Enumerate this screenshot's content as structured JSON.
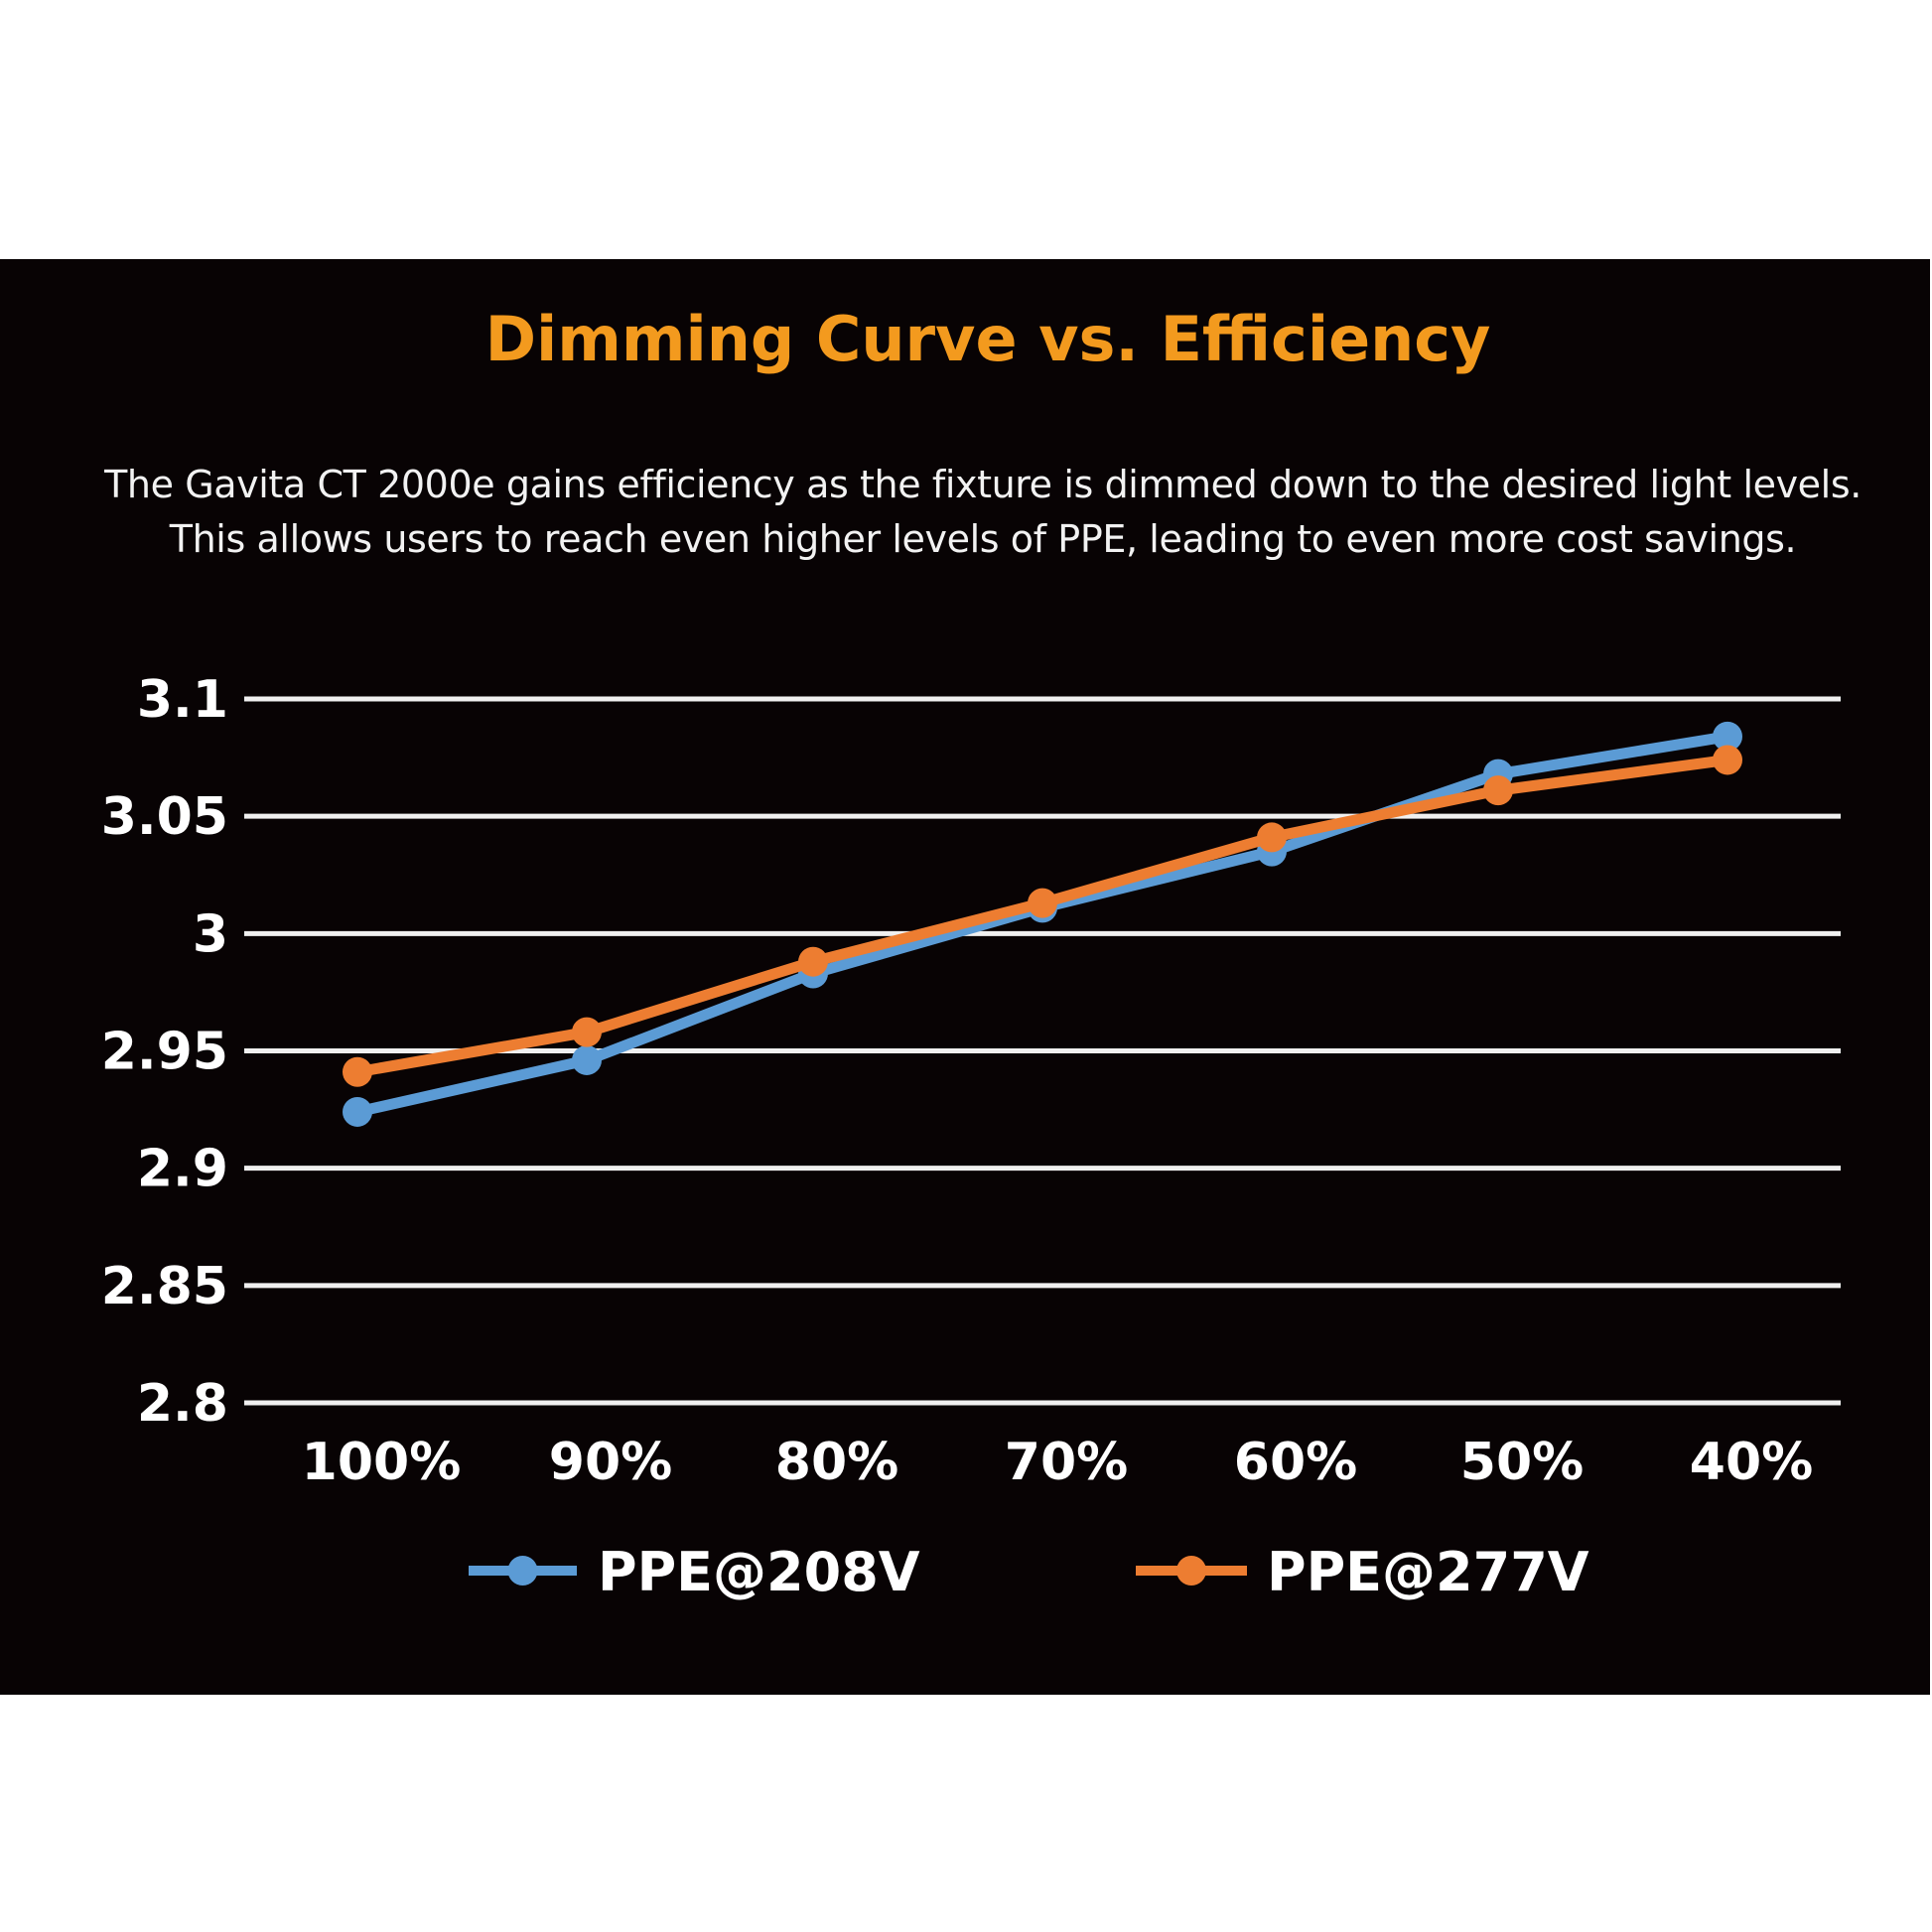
{
  "chart_data": {
    "type": "line",
    "title": "Dimming Curve vs. Efficiency",
    "subtitle": [
      "The Gavita CT 2000e  gains efficiency as the fixture is dimmed down to the desired light levels.",
      "This allows users to reach even higher levels of PPE, leading to even more cost savings."
    ],
    "categories": [
      "100%",
      "90%",
      "80%",
      "70%",
      "60%",
      "50%",
      "40%"
    ],
    "yticks": [
      "3.1",
      "3.05",
      "3",
      "2.95",
      "2.9",
      "2.85",
      "2.8"
    ],
    "ylim": [
      2.8,
      3.1
    ],
    "grid": true,
    "legend_position": "bottom",
    "background": "#080304",
    "title_color": "#f39a1e",
    "series": [
      {
        "name": "PPE@208V",
        "color": "#5b9bd5",
        "values": [
          2.924,
          2.946,
          2.983,
          3.011,
          3.035,
          3.068,
          3.084
        ]
      },
      {
        "name": "PPE@277V",
        "color": "#ed7d31",
        "values": [
          2.941,
          2.958,
          2.988,
          3.013,
          3.041,
          3.061,
          3.074
        ]
      }
    ]
  }
}
